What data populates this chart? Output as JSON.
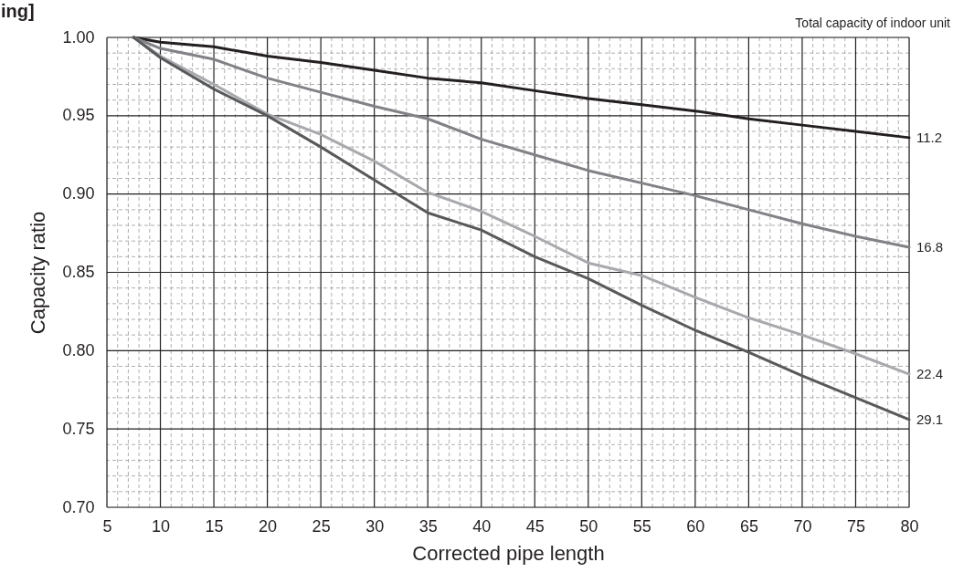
{
  "chart_data": {
    "type": "line",
    "title": "ing]",
    "xlabel": "Corrected pipe length",
    "ylabel": "Capacity ratio",
    "legend_title": "Total capacity of indoor unit",
    "x": [
      7.5,
      10,
      15,
      20,
      25,
      30,
      35,
      40,
      45,
      50,
      55,
      60,
      65,
      70,
      75,
      80
    ],
    "series": [
      {
        "name": "11.2",
        "color": "#231f20",
        "values": [
          1.0,
          0.997,
          0.994,
          0.988,
          0.984,
          0.979,
          0.974,
          0.971,
          0.966,
          0.961,
          0.957,
          0.953,
          0.948,
          0.944,
          0.94,
          0.936
        ]
      },
      {
        "name": "16.8",
        "color": "#808285",
        "values": [
          1.0,
          0.993,
          0.986,
          0.974,
          0.965,
          0.956,
          0.948,
          0.935,
          0.925,
          0.915,
          0.907,
          0.899,
          0.89,
          0.881,
          0.873,
          0.866
        ]
      },
      {
        "name": "22.4",
        "color": "#a7a9ac",
        "values": [
          1.0,
          0.988,
          0.97,
          0.951,
          0.938,
          0.921,
          0.901,
          0.889,
          0.873,
          0.856,
          0.848,
          0.834,
          0.821,
          0.81,
          0.798,
          0.785
        ]
      },
      {
        "name": "29.1",
        "color": "#58595b",
        "values": [
          1.0,
          0.987,
          0.967,
          0.95,
          0.93,
          0.909,
          0.888,
          0.877,
          0.86,
          0.846,
          0.829,
          0.813,
          0.799,
          0.784,
          0.77,
          0.756
        ]
      }
    ],
    "xlim": [
      5,
      80
    ],
    "ylim": [
      0.7,
      1.0
    ],
    "xticks": [
      5,
      {
        "value": 6,
        "label": null
      },
      {
        "value": 7,
        "label": null
      },
      {
        "value": 8,
        "label": null
      },
      {
        "value": 9,
        "label": null
      },
      10,
      {
        "value": 11,
        "label": null
      },
      {
        "value": 12,
        "label": null
      },
      {
        "value": 13,
        "label": null
      },
      {
        "value": 14,
        "label": null
      },
      15,
      {
        "value": 16,
        "label": null
      },
      {
        "value": 17,
        "label": null
      },
      {
        "value": 18,
        "label": null
      },
      {
        "value": 19,
        "label": null
      },
      20,
      {
        "value": 21,
        "label": null
      },
      {
        "value": 22,
        "label": null
      },
      {
        "value": 23,
        "label": null
      },
      {
        "value": 24,
        "label": null
      },
      25,
      {
        "value": 26,
        "label": null
      },
      {
        "value": 27,
        "label": null
      },
      {
        "value": 28,
        "label": null
      },
      {
        "value": 29,
        "label": null
      },
      30,
      {
        "value": 31,
        "label": null
      },
      {
        "value": 32,
        "label": null
      },
      {
        "value": 33,
        "label": null
      },
      {
        "value": 34,
        "label": null
      },
      35,
      {
        "value": 36,
        "label": null
      },
      {
        "value": 37,
        "label": null
      },
      {
        "value": 38,
        "label": null
      },
      {
        "value": 39,
        "label": null
      },
      40,
      {
        "value": 41,
        "label": null
      },
      {
        "value": 42,
        "label": null
      },
      {
        "value": 43,
        "label": null
      },
      {
        "value": 44,
        "label": null
      },
      45,
      {
        "value": 46,
        "label": null
      },
      {
        "value": 47,
        "label": null
      },
      {
        "value": 48,
        "label": null
      },
      {
        "value": 49,
        "label": null
      },
      50,
      {
        "value": 51,
        "label": null
      },
      {
        "value": 52,
        "label": null
      },
      {
        "value": 53,
        "label": null
      },
      {
        "value": 54,
        "label": null
      },
      55,
      {
        "value": 56,
        "label": null
      },
      {
        "value": 57,
        "label": null
      },
      {
        "value": 58,
        "label": null
      },
      {
        "value": 59,
        "label": null
      },
      60,
      {
        "value": 61,
        "label": null
      },
      {
        "value": 62,
        "label": null
      },
      {
        "value": 63,
        "label": null
      },
      {
        "value": 64,
        "label": null
      },
      65,
      {
        "value": 66,
        "label": null
      },
      {
        "value": 67,
        "label": null
      },
      {
        "value": 68,
        "label": null
      },
      {
        "value": 69,
        "label": null
      },
      70,
      {
        "value": 71,
        "label": null
      },
      {
        "value": 72,
        "label": null
      },
      {
        "value": 73,
        "label": null
      },
      {
        "value": 74,
        "label": null
      },
      75,
      {
        "value": 76,
        "label": null
      },
      {
        "value": 77,
        "label": null
      },
      {
        "value": 78,
        "label": null
      },
      {
        "value": 79,
        "label": null
      },
      80
    ],
    "yticks": [
      {
        "value": 0.7,
        "label": "0.70"
      },
      {
        "value": 0.71,
        "label": null
      },
      {
        "value": 0.72,
        "label": null
      },
      {
        "value": 0.73,
        "label": null
      },
      {
        "value": 0.74,
        "label": null
      },
      0.75,
      {
        "value": 0.76,
        "label": null
      },
      {
        "value": 0.77,
        "label": null
      },
      {
        "value": 0.78,
        "label": null
      },
      {
        "value": 0.79,
        "label": null
      },
      {
        "value": 0.8,
        "label": "0.80"
      },
      {
        "value": 0.81,
        "label": null
      },
      {
        "value": 0.82,
        "label": null
      },
      {
        "value": 0.83,
        "label": null
      },
      {
        "value": 0.84,
        "label": null
      },
      0.85,
      {
        "value": 0.86,
        "label": null
      },
      {
        "value": 0.87,
        "label": null
      },
      {
        "value": 0.88,
        "label": null
      },
      {
        "value": 0.89,
        "label": null
      },
      {
        "value": 0.9,
        "label": "0.90"
      },
      {
        "value": 0.91,
        "label": null
      },
      {
        "value": 0.92,
        "label": null
      },
      {
        "value": 0.93,
        "label": null
      },
      {
        "value": 0.94,
        "label": null
      },
      0.95,
      {
        "value": 0.96,
        "label": null
      },
      {
        "value": 0.97,
        "label": null
      },
      {
        "value": 0.98,
        "label": null
      },
      {
        "value": 0.99,
        "label": null
      },
      {
        "value": 1.0,
        "label": "1.00"
      }
    ],
    "grid": true,
    "marker": "none",
    "line_style": "solid"
  }
}
